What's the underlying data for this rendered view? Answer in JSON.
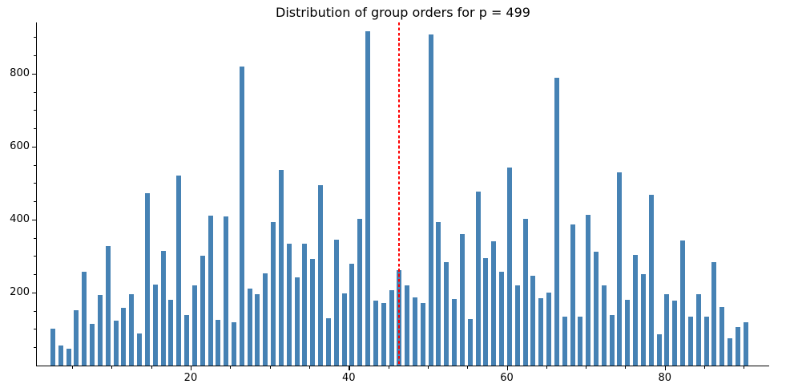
{
  "chart_data": {
    "type": "bar",
    "title": "Distribution of group orders for p = 499",
    "xlabel": "",
    "ylabel": "",
    "values": [
      102,
      55,
      46,
      151,
      258,
      114,
      193,
      328,
      122,
      158,
      195,
      88,
      473,
      222,
      315,
      181,
      521,
      138,
      220,
      301,
      411,
      125,
      408,
      119,
      820,
      210,
      195,
      253,
      394,
      535,
      334,
      242,
      333,
      292,
      494,
      130,
      345,
      198,
      278,
      403,
      915,
      178,
      172,
      207,
      262,
      220,
      187,
      172,
      908,
      393,
      284,
      182,
      361,
      128,
      476,
      295,
      340,
      258,
      543,
      220,
      403,
      245,
      185,
      199,
      788,
      134,
      386,
      135,
      412,
      312,
      219,
      139,
      529,
      180,
      302,
      251,
      468,
      85,
      195,
      178,
      342,
      135,
      195,
      135,
      283,
      160,
      75,
      105,
      118
    ],
    "bar_x_start": 2.565,
    "bar_x_step": 0.9962,
    "bar_color": "#4682b4",
    "vline": {
      "x": 46.4,
      "color": "#ff0000",
      "style": "dashed",
      "width": 2
    },
    "xticks": [
      20,
      40,
      60,
      80
    ],
    "yticks": [
      200,
      400,
      600,
      800
    ],
    "x_minor_step": 5,
    "x_minor_max": 90,
    "y_minor_step": 50,
    "y_minor_max": 900,
    "xlim": [
      0.54,
      93.2
    ],
    "ylim": [
      0,
      940
    ],
    "grid": false,
    "legend": null
  }
}
